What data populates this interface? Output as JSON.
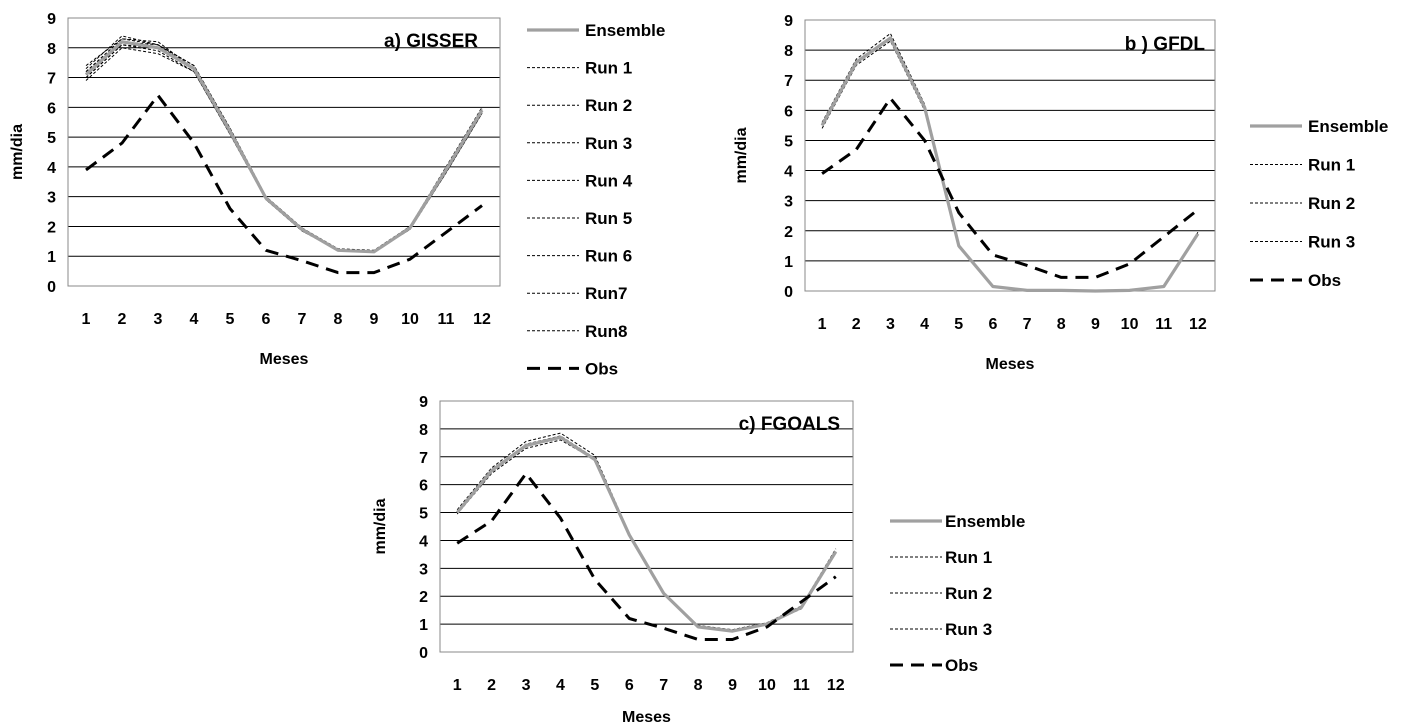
{
  "chart_data": [
    {
      "type": "line",
      "title": "a) GISSER",
      "xlabel": "Meses",
      "ylabel": "mm/dia",
      "x": [
        1,
        2,
        3,
        4,
        5,
        6,
        7,
        8,
        9,
        10,
        11,
        12
      ],
      "ylim": [
        0,
        9
      ],
      "grid": true,
      "legend_position": "right",
      "series": [
        {
          "name": "Ensemble",
          "style": "solid-thick",
          "color": "#a0a0a0",
          "values": [
            7.1,
            8.2,
            8.0,
            7.3,
            5.2,
            2.95,
            1.9,
            1.2,
            1.15,
            1.95,
            3.9,
            5.9
          ]
        },
        {
          "name": "Run 1",
          "style": "dotted",
          "color": "#000000",
          "values": [
            7.0,
            8.1,
            7.9,
            7.2,
            5.1,
            2.9,
            1.85,
            1.2,
            1.15,
            1.9,
            3.8,
            5.8
          ]
        },
        {
          "name": "Run 2",
          "style": "dotted",
          "color": "#000000",
          "values": [
            7.3,
            8.4,
            8.1,
            7.4,
            5.3,
            3.0,
            1.95,
            1.25,
            1.2,
            2.0,
            4.0,
            6.0
          ]
        },
        {
          "name": "Run 3",
          "style": "dotted",
          "color": "#000000",
          "values": [
            6.9,
            8.0,
            7.8,
            7.2,
            5.1,
            2.9,
            1.85,
            1.2,
            1.15,
            1.9,
            3.8,
            5.8
          ]
        },
        {
          "name": "Run 4",
          "style": "dotted",
          "color": "#000000",
          "values": [
            7.2,
            8.3,
            8.2,
            7.3,
            5.2,
            2.95,
            1.9,
            1.2,
            1.15,
            1.95,
            3.9,
            5.9
          ]
        },
        {
          "name": "Run 5",
          "style": "dotted",
          "color": "#000000",
          "values": [
            7.1,
            8.2,
            8.0,
            7.3,
            5.2,
            2.95,
            1.9,
            1.2,
            1.15,
            1.95,
            3.9,
            5.9
          ]
        },
        {
          "name": "Run 6",
          "style": "dotted",
          "color": "#000000",
          "values": [
            7.4,
            8.3,
            8.1,
            7.4,
            5.3,
            3.0,
            1.95,
            1.2,
            1.15,
            2.0,
            3.95,
            5.95
          ]
        },
        {
          "name": "Run7",
          "style": "dotted",
          "color": "#000000",
          "values": [
            7.0,
            8.1,
            8.0,
            7.3,
            5.2,
            2.9,
            1.9,
            1.2,
            1.15,
            1.95,
            3.85,
            5.85
          ]
        },
        {
          "name": "Run8",
          "style": "dotted",
          "color": "#000000",
          "values": [
            7.2,
            8.2,
            8.1,
            7.3,
            5.2,
            2.95,
            1.9,
            1.2,
            1.15,
            1.95,
            3.9,
            5.9
          ]
        },
        {
          "name": "Obs",
          "style": "dashed-thick",
          "color": "#000000",
          "values": [
            3.9,
            4.8,
            6.4,
            4.8,
            2.6,
            1.2,
            0.85,
            0.45,
            0.45,
            0.9,
            1.8,
            2.7
          ]
        }
      ]
    },
    {
      "type": "line",
      "title": "b ) GFDL",
      "xlabel": "Meses",
      "ylabel": "mm/dia",
      "x": [
        1,
        2,
        3,
        4,
        5,
        6,
        7,
        8,
        9,
        10,
        11,
        12
      ],
      "ylim": [
        0,
        9
      ],
      "grid": true,
      "legend_position": "right",
      "series": [
        {
          "name": "Ensemble",
          "style": "solid-thick",
          "color": "#a0a0a0",
          "values": [
            5.5,
            7.6,
            8.4,
            6.1,
            1.5,
            0.15,
            0.02,
            0.02,
            0.0,
            0.02,
            0.15,
            1.9
          ]
        },
        {
          "name": "Run 1",
          "style": "dotted",
          "color": "#000000",
          "values": [
            5.4,
            7.5,
            8.3,
            6.0,
            1.45,
            0.15,
            0.02,
            0.02,
            0.0,
            0.02,
            0.15,
            1.85
          ]
        },
        {
          "name": "Run 2",
          "style": "dotted",
          "color": "#000000",
          "values": [
            5.6,
            7.7,
            8.55,
            6.2,
            1.5,
            0.15,
            0.02,
            0.02,
            0.0,
            0.02,
            0.15,
            1.95
          ]
        },
        {
          "name": "Run 3",
          "style": "dotted",
          "color": "#000000",
          "values": [
            5.5,
            7.6,
            8.4,
            6.1,
            1.5,
            0.15,
            0.02,
            0.02,
            0.0,
            0.02,
            0.15,
            1.9
          ]
        },
        {
          "name": "Obs",
          "style": "dashed-thick",
          "color": "#000000",
          "values": [
            3.9,
            4.7,
            6.4,
            5.0,
            2.6,
            1.2,
            0.85,
            0.45,
            0.45,
            0.9,
            1.8,
            2.7
          ]
        }
      ]
    },
    {
      "type": "line",
      "title": "c) FGOALS",
      "xlabel": "Meses",
      "ylabel": "mm/dia",
      "x": [
        1,
        2,
        3,
        4,
        5,
        6,
        7,
        8,
        9,
        10,
        11,
        12
      ],
      "ylim": [
        0,
        9
      ],
      "grid": true,
      "legend_position": "right",
      "series": [
        {
          "name": "Ensemble",
          "style": "solid-thick",
          "color": "#a0a0a0",
          "values": [
            5.0,
            6.5,
            7.4,
            7.7,
            6.9,
            4.2,
            2.1,
            0.9,
            0.75,
            1.0,
            1.6,
            3.6
          ]
        },
        {
          "name": "Run 1",
          "style": "dotted",
          "color": "#000000",
          "values": [
            4.95,
            6.4,
            7.3,
            7.6,
            6.9,
            4.2,
            2.1,
            0.9,
            0.75,
            1.0,
            1.55,
            3.55
          ]
        },
        {
          "name": "Run 2",
          "style": "dotted",
          "color": "#000000",
          "values": [
            5.1,
            6.6,
            7.55,
            7.85,
            7.05,
            4.25,
            2.1,
            0.95,
            0.8,
            1.05,
            1.65,
            3.7
          ]
        },
        {
          "name": "Run 3",
          "style": "dotted",
          "color": "#000000",
          "values": [
            5.0,
            6.5,
            7.45,
            7.75,
            6.95,
            4.2,
            2.1,
            0.9,
            0.75,
            1.0,
            1.6,
            3.6
          ]
        },
        {
          "name": "Obs",
          "style": "dashed-thick",
          "color": "#000000",
          "values": [
            3.9,
            4.7,
            6.4,
            4.8,
            2.6,
            1.2,
            0.85,
            0.45,
            0.45,
            0.9,
            1.8,
            2.7
          ]
        }
      ]
    }
  ]
}
